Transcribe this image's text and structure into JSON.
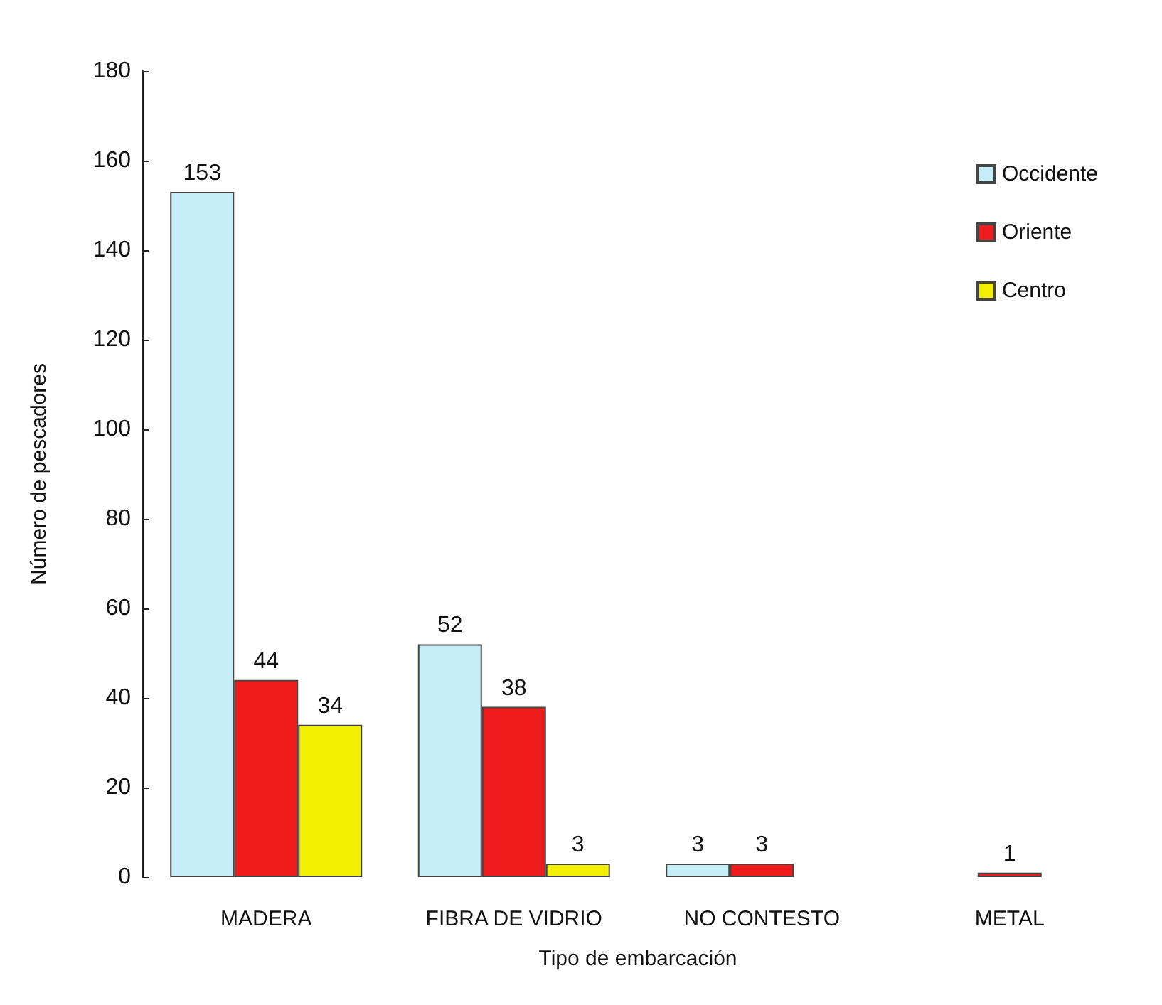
{
  "chart_data": {
    "type": "bar",
    "xlabel": "Tipo de embarcación",
    "ylabel": "Número de pescadores",
    "categories": [
      "MADERA",
      "FIBRA DE VIDRIO",
      "NO CONTESTO",
      "METAL"
    ],
    "series": [
      {
        "name": "Occidente",
        "color": "#c6eef8",
        "values": [
          153,
          52,
          3,
          null
        ]
      },
      {
        "name": "Oriente",
        "color": "#ee1c1c",
        "values": [
          44,
          38,
          3,
          1
        ]
      },
      {
        "name": "Centro",
        "color": "#f2f000",
        "values": [
          34,
          3,
          null,
          null
        ]
      }
    ],
    "ylim": [
      0,
      180
    ],
    "yticks": [
      0,
      20,
      40,
      60,
      80,
      100,
      120,
      140,
      160,
      180
    ],
    "data_labels": true,
    "grid": false,
    "legend": "top right"
  }
}
